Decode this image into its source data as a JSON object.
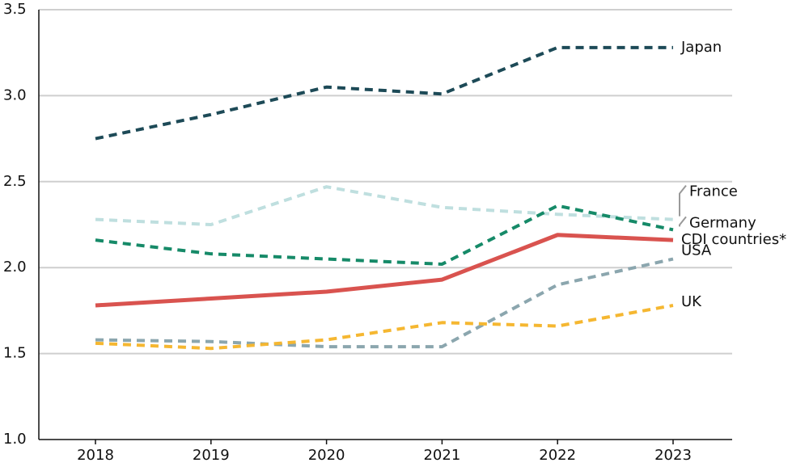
{
  "chart_data": {
    "type": "line",
    "categories": [
      "2018",
      "2019",
      "2020",
      "2021",
      "2022",
      "2023"
    ],
    "series": [
      {
        "name": "Japan",
        "color": "#1d4a57",
        "dashed": true,
        "values": [
          2.75,
          2.89,
          3.05,
          3.01,
          3.28,
          3.28
        ]
      },
      {
        "name": "France",
        "color": "#bfdfdf",
        "dashed": true,
        "values": [
          2.28,
          2.25,
          2.47,
          2.35,
          2.31,
          2.28
        ]
      },
      {
        "name": "Germany",
        "color": "#168a68",
        "dashed": true,
        "values": [
          2.16,
          2.08,
          2.05,
          2.02,
          2.36,
          2.22
        ]
      },
      {
        "name": "CDI countries*",
        "color": "#d9534f",
        "dashed": false,
        "values": [
          1.78,
          1.82,
          1.86,
          1.93,
          2.19,
          2.16
        ]
      },
      {
        "name": "USA",
        "color": "#8ba6ae",
        "dashed": true,
        "values": [
          1.58,
          1.57,
          1.54,
          1.54,
          1.9,
          2.05
        ]
      },
      {
        "name": "UK",
        "color": "#f5b731",
        "dashed": true,
        "values": [
          1.56,
          1.53,
          1.58,
          1.68,
          1.66,
          1.78
        ]
      }
    ],
    "ylim": [
      1.0,
      3.5
    ],
    "yticks": [
      {
        "value": 1.0,
        "label": "1.0"
      },
      1.5,
      {
        "value": 2.0,
        "label": "2.0"
      },
      2.5,
      {
        "value": 3.0,
        "label": "3.0"
      },
      3.5
    ],
    "grid": true
  }
}
